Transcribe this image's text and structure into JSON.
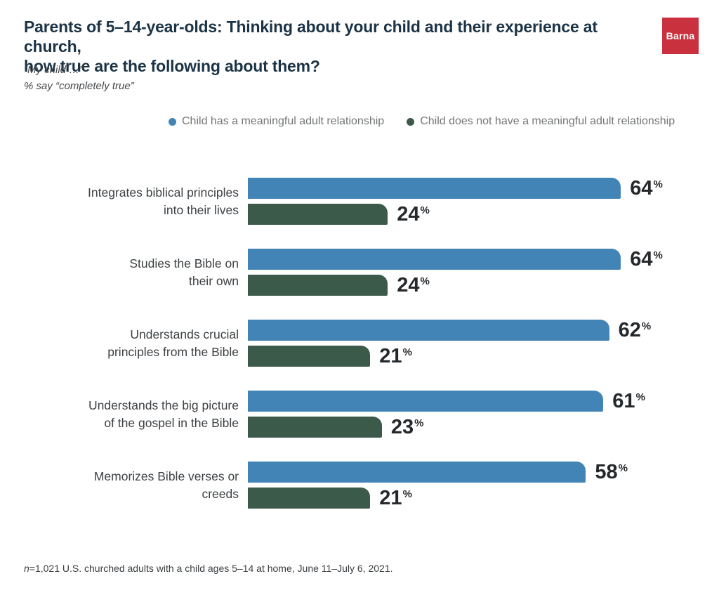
{
  "header": {
    "title_lines": [
      "Parents of 5–14-year-olds: Thinking about your child and their experience at church,",
      "how true are the following about them?"
    ],
    "subtitle_lines": [
      "“My child …”",
      "% say “completely true”"
    ],
    "logo_text": "Barna"
  },
  "colors": {
    "title": "#1B3345",
    "bar_blue": "#4384B6",
    "bar_green": "#3C5A4A",
    "logo_red": "#C9313E",
    "value_text": "#26292C",
    "label_text": "#3E4245",
    "legend_text": "#737678",
    "subtitle_text": "#44474A",
    "footnote_text": "#3A3E41"
  },
  "chart_data": {
    "type": "bar",
    "orientation": "horizontal",
    "title": "Parents of 5–14-year-olds: Thinking about your child and their experience at church, how true are the following about them?",
    "value_suffix": "%",
    "xlim": [
      0,
      68
    ],
    "grid": false,
    "legend_position": "top",
    "categories": [
      "Integrates biblical principles\ninto their lives",
      "Studies the Bible on\ntheir own",
      "Understands crucial\nprinciples from the Bible",
      "Understands the big picture\nof the gospel in the Bible",
      "Memorizes Bible verses or\ncreeds"
    ],
    "series": [
      {
        "name": "Child has a meaningful adult relationship",
        "color": "#4384B6",
        "values": [
          64,
          64,
          62,
          61,
          58
        ]
      },
      {
        "name": "Child does not have a meaningful adult relationship",
        "color": "#3C5A4A",
        "values": [
          24,
          24,
          21,
          23,
          21
        ]
      }
    ]
  },
  "footnote": {
    "prefix_italic": "n",
    "text": "=1,021 U.S. churched adults with a child ages 5–14 at home, June 11–July 6, 2021."
  }
}
